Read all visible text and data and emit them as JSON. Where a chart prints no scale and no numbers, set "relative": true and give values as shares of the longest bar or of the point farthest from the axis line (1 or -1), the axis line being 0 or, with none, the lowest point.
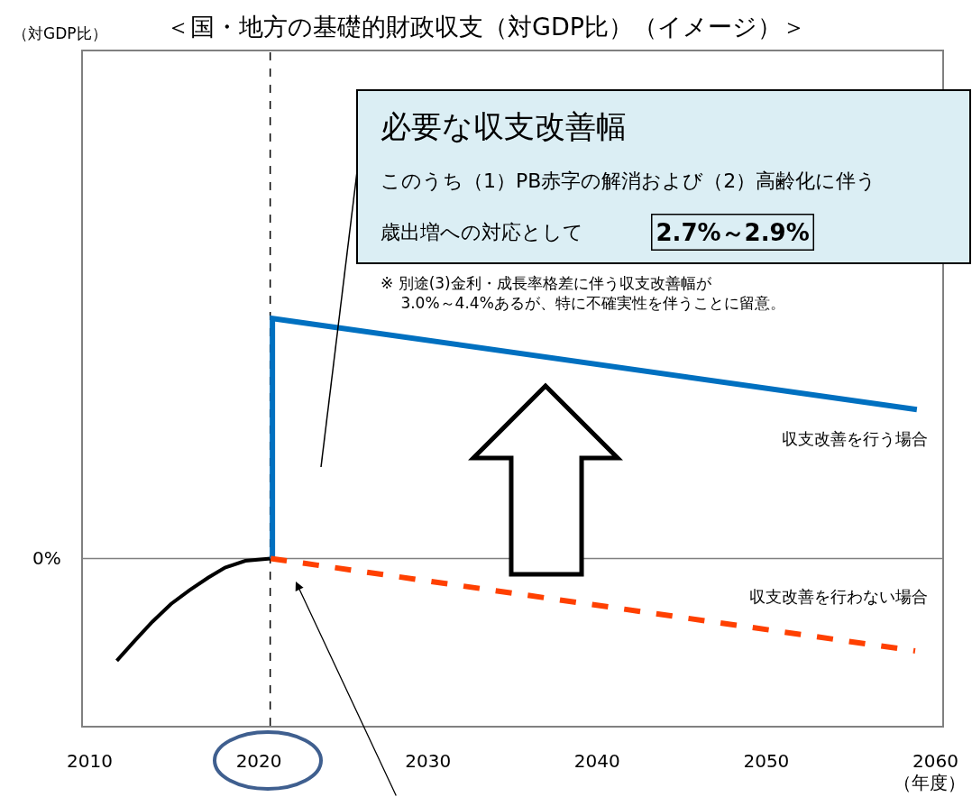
{
  "chart_data": {
    "type": "line",
    "title": "＜国・地方の基礎的財政収支（対GDP比）（イメージ）＞",
    "relative": true,
    "xlim": [
      2009.6,
      2060.4
    ],
    "xticks": [
      2010,
      2020,
      2030,
      2040,
      2050,
      2060
    ],
    "series": [
      {
        "color": "#000000",
        "x": [
          2011.6,
          2012.7,
          2013.7,
          2014.8,
          2015.9,
          2017.0,
          2018.0,
          2019.2,
          2020.7
        ],
        "values": [
          -0.426,
          -0.34,
          -0.264,
          -0.19,
          -0.132,
          -0.08,
          -0.038,
          -0.01,
          0
        ]
      },
      {
        "name": "収支改善を行う場合",
        "color": "#0070c0",
        "x": [
          2020.8,
          2020.8,
          2058.9
        ],
        "values": [
          0,
          1,
          0.62
        ]
      },
      {
        "name": "収支改善を行わない場合",
        "color": "#ff4000",
        "line_style": "dashed",
        "x": [
          2020.7,
          2058.8
        ],
        "values": [
          0,
          -0.385
        ]
      }
    ],
    "ref_lines": [
      {
        "axis": "y",
        "value": 0,
        "label": "0%",
        "color": "#808080"
      },
      {
        "axis": "x",
        "value": 2020.67,
        "color": "#000000",
        "line_style": "dashed"
      }
    ],
    "annotations": [
      "必要な収支改善幅",
      "このうち（1）PB赤字の解消および（2）高齢化に伴う",
      "歳出増への対応として",
      "2.7%～2.9%",
      "※ 別途(3)金利・成長率格差に伴う収支改善幅が\n　 3.0%～4.4%あるが、特に不確実性を伴うことに留意。",
      "（年度）",
      "（対GDP比）"
    ],
    "grid": false,
    "legend": false,
    "marker": "none"
  }
}
